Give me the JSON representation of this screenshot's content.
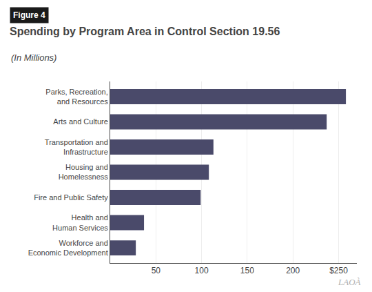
{
  "chart_data": {
    "type": "bar",
    "orientation": "horizontal",
    "title": "Spending by Program Area in Control Section 19.56",
    "subtitle": "(In Millions)",
    "annotations": [
      "Figure 4",
      "LAOÀ"
    ],
    "categories": [
      "Parks, Recreation,\nand Resources",
      "Arts and Culture",
      "Transportation and\nInfrastructure",
      "Housing and\nHomelessness",
      "Fire and Public Safety",
      "Health and\nHuman Services",
      "Workforce and\nEconomic Development"
    ],
    "values": [
      258,
      237,
      113,
      108,
      99,
      37,
      28
    ],
    "color": "#4a4a6a",
    "xlim": [
      0,
      270
    ],
    "xticks": [
      50,
      100,
      150,
      200,
      {
        "value": 250,
        "label": "$250"
      }
    ],
    "grid": true
  }
}
